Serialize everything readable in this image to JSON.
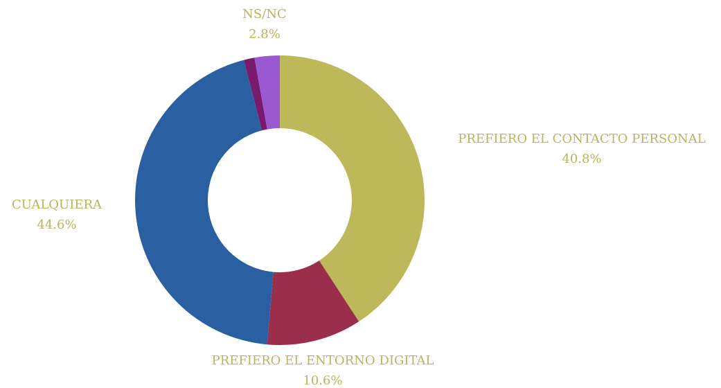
{
  "chart_data": {
    "type": "donut",
    "categories": [
      "PREFIERO EL CONTACTO PERSONAL",
      "PREFIERO EL ENTORNO DIGITAL",
      "CUALQUIERA",
      null,
      "NS/NC"
    ],
    "values": [
      40.8,
      10.6,
      44.6,
      1.2,
      2.8
    ],
    "value_labels": [
      "40.8%",
      "10.6%",
      "44.6%",
      null,
      "2.8%"
    ],
    "colors": [
      "#bdb95b",
      "#9b2e4a",
      "#2a5fa1",
      "#7a1a6c",
      "#9a59d1"
    ],
    "label_color": "#b9b55c"
  }
}
